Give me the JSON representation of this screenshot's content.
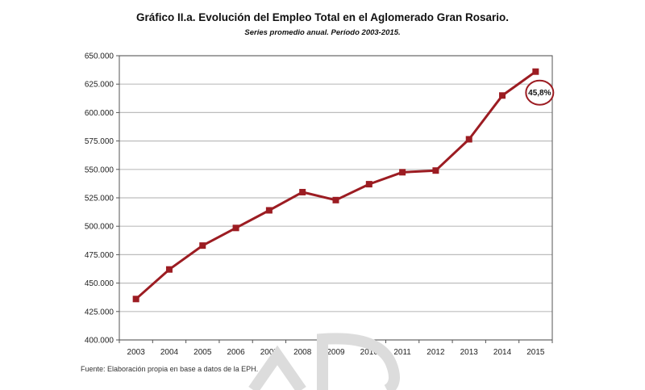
{
  "title": "Gráfico II.a. Evolución del Empleo Total en el Aglomerado Gran Rosario.",
  "subtitle": "Series promedio anual. Período 2003-2015.",
  "source": "Fuente: Elaboración propia en base a datos de la EPH.",
  "colors": {
    "line": "#9c1c22",
    "grid": "#bdbdbd",
    "frame": "#555555"
  },
  "chart_data": {
    "type": "line",
    "title": "Gráfico II.a. Evolución del Empleo Total en el Aglomerado Gran Rosario.",
    "subtitle": "Series promedio anual. Período 2003-2015.",
    "xlabel": "",
    "ylabel": "",
    "categories": [
      "2003",
      "2004",
      "2005",
      "2006",
      "2007",
      "2008",
      "2009",
      "2010",
      "2011",
      "2012",
      "2013",
      "2014",
      "2015"
    ],
    "series": [
      {
        "values": [
          436000,
          462000,
          483000,
          498500,
          514000,
          530000,
          523000,
          537000,
          547500,
          549000,
          576500,
          615000,
          636000
        ]
      }
    ],
    "ylim": [
      400000,
      650000
    ],
    "yticks": [
      400000,
      425000,
      450000,
      475000,
      500000,
      525000,
      550000,
      575000,
      600000,
      625000,
      650000
    ],
    "ytick_labels": [
      "400.000",
      "425.000",
      "450.000",
      "475.000",
      "500.000",
      "525.000",
      "550.000",
      "575.000",
      "600.000",
      "625.000",
      "650.000"
    ],
    "grid": true,
    "legend": "none",
    "annotations": [
      {
        "text": "45,8%",
        "category": "2015",
        "style": "circled"
      }
    ]
  }
}
